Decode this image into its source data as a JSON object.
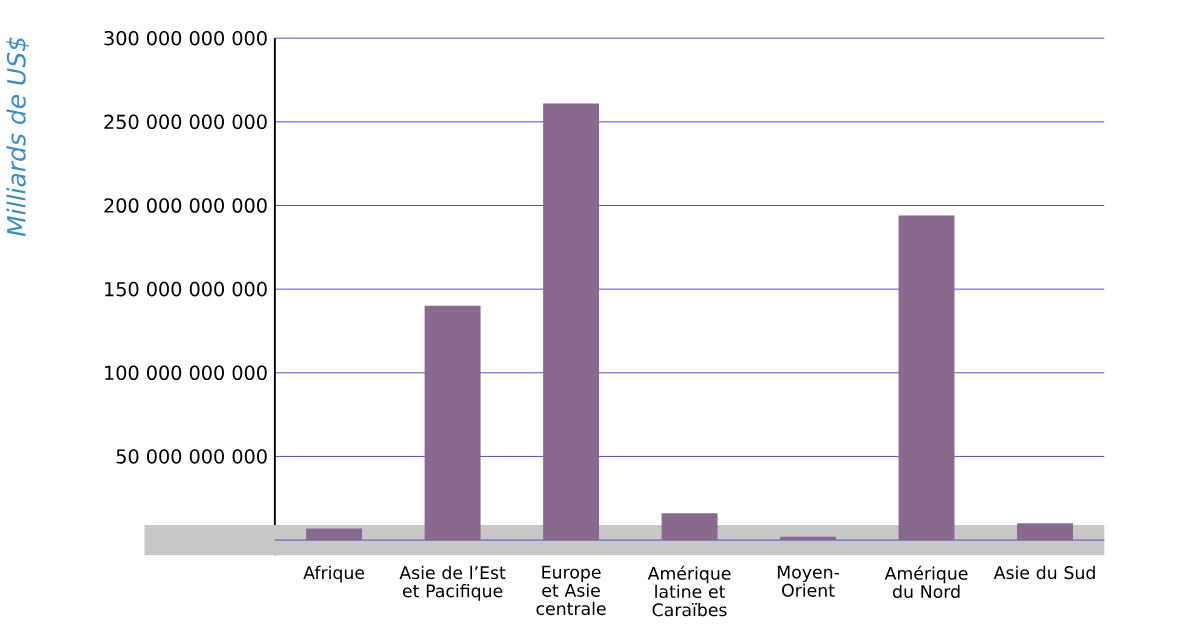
{
  "chart_data": {
    "type": "bar",
    "ylabel": "Milliards de US$",
    "categories": [
      "Afrique",
      "Asie de l’Est et Pacifique",
      "Europe et Asie centrale",
      "Amérique latine et Caraïbes",
      "Moyen-Orient",
      "Amérique du Nord",
      "Asie du Sud"
    ],
    "values": [
      7000000000,
      140000000000,
      261000000000,
      16000000000,
      2000000000,
      194000000000,
      10000000000
    ],
    "color": "#876a8e",
    "ylim": [
      -9000000000,
      300000000000
    ],
    "yticks": [
      {
        "value": 0,
        "label": null
      },
      {
        "value": 50000000000,
        "label": "50 000 000 000"
      },
      {
        "value": 100000000000,
        "label": "100 000 000 000"
      },
      {
        "value": 150000000000,
        "label": "150 000 000 000"
      },
      {
        "value": 200000000000,
        "label": "200 000 000 000"
      },
      {
        "value": 250000000000,
        "label": "250 000 000 000"
      },
      {
        "value": 300000000000,
        "label": "300 000 000 000"
      }
    ],
    "grid": "y",
    "bands": [
      {
        "axis": "y",
        "from": -9000000000,
        "to": 9000000000,
        "color": "#c8c6c8"
      }
    ]
  }
}
